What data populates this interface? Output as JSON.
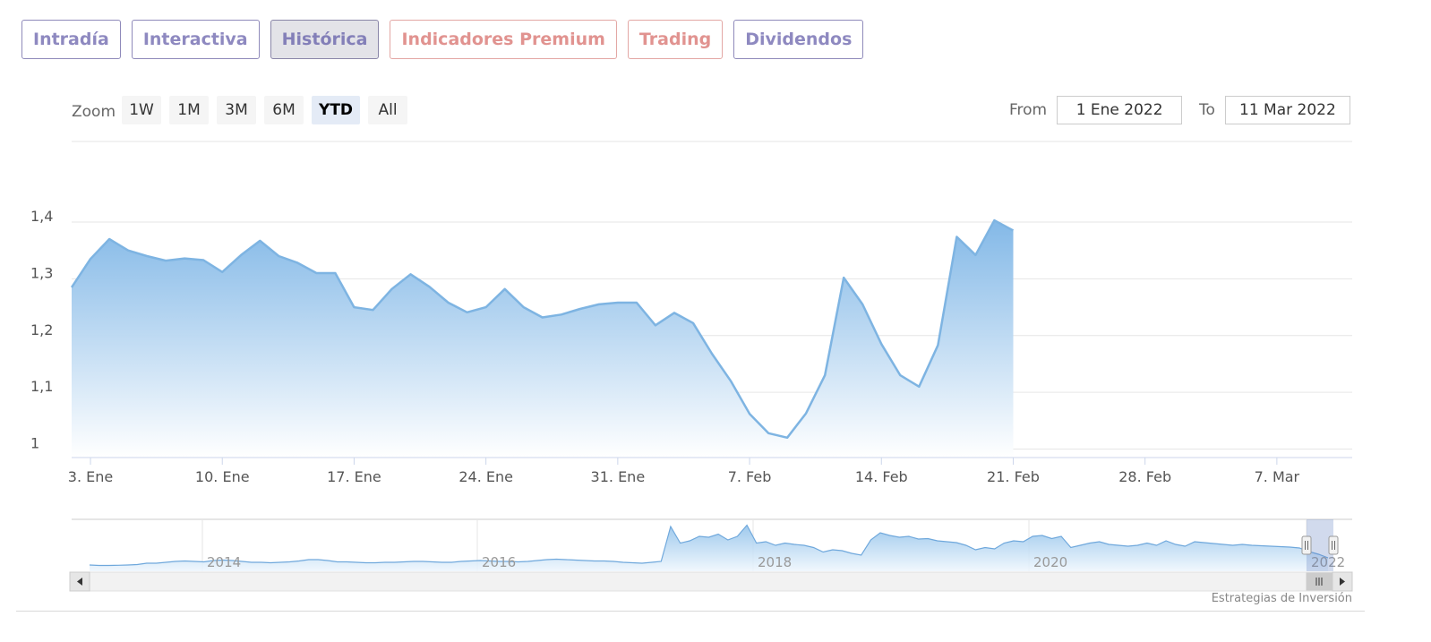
{
  "tabs": [
    {
      "label": "Intradía",
      "style": "default"
    },
    {
      "label": "Interactiva",
      "style": "default"
    },
    {
      "label": "Histórica",
      "style": "active"
    },
    {
      "label": "Indicadores Premium",
      "style": "premium"
    },
    {
      "label": "Trading",
      "style": "premium"
    },
    {
      "label": "Dividendos",
      "style": "default"
    }
  ],
  "range_selector": {
    "zoom_label": "Zoom",
    "buttons": [
      "1W",
      "1M",
      "3M",
      "6M",
      "YTD",
      "All"
    ],
    "selected": "YTD",
    "from_label": "From",
    "from_value": "1 Ene 2022",
    "to_label": "To",
    "to_value": "11 Mar 2022"
  },
  "colors": {
    "line": "#7eb4e2",
    "fill_top": "#7db5e6",
    "fill_bottom": "#ffffff",
    "tab_text": "#8e89c0",
    "tab_premium": "#e19390"
  },
  "chart_data": {
    "type": "area",
    "y_ticks": [
      1,
      1.1,
      1.2,
      1.3,
      1.4
    ],
    "y_tick_labels": [
      "1",
      "1,1",
      "1,2",
      "1,3",
      "1,4"
    ],
    "ylim": [
      0.985,
      1.43
    ],
    "x_start": "2022-01-02",
    "x_end": "2022-03-11",
    "x_ticks": [
      {
        "date": "2022-01-03",
        "label": "3. Ene"
      },
      {
        "date": "2022-01-10",
        "label": "10. Ene"
      },
      {
        "date": "2022-01-17",
        "label": "17. Ene"
      },
      {
        "date": "2022-01-24",
        "label": "24. Ene"
      },
      {
        "date": "2022-01-31",
        "label": "31. Ene"
      },
      {
        "date": "2022-02-07",
        "label": "7. Feb"
      },
      {
        "date": "2022-02-14",
        "label": "14. Feb"
      },
      {
        "date": "2022-02-21",
        "label": "21. Feb"
      },
      {
        "date": "2022-02-28",
        "label": "28. Feb"
      },
      {
        "date": "2022-03-07",
        "label": "7. Mar"
      }
    ],
    "points": [
      [
        "2022-01-02",
        1.285
      ],
      [
        "2022-01-03",
        1.335
      ],
      [
        "2022-01-04",
        1.37
      ],
      [
        "2022-01-05",
        1.35
      ],
      [
        "2022-01-06",
        1.34
      ],
      [
        "2022-01-07",
        1.332
      ],
      [
        "2022-01-08",
        1.336
      ],
      [
        "2022-01-09",
        1.333
      ],
      [
        "2022-01-10",
        1.312
      ],
      [
        "2022-01-11",
        1.342
      ],
      [
        "2022-01-12",
        1.367
      ],
      [
        "2022-01-13",
        1.34
      ],
      [
        "2022-01-14",
        1.328
      ],
      [
        "2022-01-15",
        1.31
      ],
      [
        "2022-01-16",
        1.31
      ],
      [
        "2022-01-17",
        1.25
      ],
      [
        "2022-01-18",
        1.245
      ],
      [
        "2022-01-19",
        1.282
      ],
      [
        "2022-01-20",
        1.308
      ],
      [
        "2022-01-21",
        1.286
      ],
      [
        "2022-01-22",
        1.258
      ],
      [
        "2022-01-23",
        1.241
      ],
      [
        "2022-01-24",
        1.25
      ],
      [
        "2022-01-25",
        1.282
      ],
      [
        "2022-01-26",
        1.25
      ],
      [
        "2022-01-27",
        1.232
      ],
      [
        "2022-01-28",
        1.237
      ],
      [
        "2022-01-29",
        1.247
      ],
      [
        "2022-01-30",
        1.255
      ],
      [
        "2022-01-31",
        1.258
      ],
      [
        "2022-02-01",
        1.258
      ],
      [
        "2022-02-02",
        1.218
      ],
      [
        "2022-02-03",
        1.24
      ],
      [
        "2022-02-04",
        1.222
      ],
      [
        "2022-02-05",
        1.168
      ],
      [
        "2022-02-06",
        1.12
      ],
      [
        "2022-02-07",
        1.062
      ],
      [
        "2022-02-08",
        1.028
      ],
      [
        "2022-02-09",
        1.02
      ],
      [
        "2022-02-10",
        1.063
      ],
      [
        "2022-02-11",
        1.13
      ],
      [
        "2022-02-12",
        1.302
      ],
      [
        "2022-02-13",
        1.255
      ],
      [
        "2022-02-14",
        1.185
      ],
      [
        "2022-02-15",
        1.13
      ],
      [
        "2022-02-16",
        1.11
      ],
      [
        "2022-02-17",
        1.183
      ],
      [
        "2022-02-18",
        1.374
      ],
      [
        "2022-02-19",
        1.342
      ],
      [
        "2022-02-20",
        1.403
      ],
      [
        "2022-02-21",
        1.385
      ]
    ]
  },
  "navigator": {
    "year_labels": [
      "2014",
      "2016",
      "2018",
      "2020",
      "2022"
    ],
    "series": [
      0.06,
      0.05,
      0.05,
      0.055,
      0.06,
      0.07,
      0.1,
      0.1,
      0.12,
      0.14,
      0.15,
      0.14,
      0.13,
      0.16,
      0.17,
      0.16,
      0.14,
      0.12,
      0.12,
      0.11,
      0.12,
      0.13,
      0.15,
      0.18,
      0.18,
      0.16,
      0.13,
      0.13,
      0.12,
      0.11,
      0.11,
      0.12,
      0.12,
      0.13,
      0.14,
      0.14,
      0.13,
      0.12,
      0.12,
      0.14,
      0.15,
      0.16,
      0.15,
      0.14,
      0.14,
      0.13,
      0.14,
      0.16,
      0.18,
      0.19,
      0.18,
      0.17,
      0.16,
      0.15,
      0.15,
      0.14,
      0.12,
      0.11,
      0.1,
      0.12,
      0.14,
      0.92,
      0.55,
      0.6,
      0.7,
      0.68,
      0.75,
      0.62,
      0.7,
      0.95,
      0.55,
      0.58,
      0.5,
      0.55,
      0.52,
      0.5,
      0.45,
      0.35,
      0.4,
      0.38,
      0.32,
      0.28,
      0.62,
      0.78,
      0.72,
      0.68,
      0.7,
      0.64,
      0.65,
      0.6,
      0.58,
      0.56,
      0.5,
      0.4,
      0.45,
      0.42,
      0.55,
      0.6,
      0.58,
      0.7,
      0.72,
      0.65,
      0.7,
      0.45,
      0.5,
      0.55,
      0.58,
      0.52,
      0.5,
      0.48,
      0.5,
      0.55,
      0.5,
      0.6,
      0.52,
      0.48,
      0.58,
      0.56,
      0.54,
      0.52,
      0.5,
      0.52,
      0.5,
      0.49,
      0.48,
      0.47,
      0.46,
      0.44,
      0.36,
      0.3,
      0.22
    ]
  },
  "credit": "Estrategias de Inversión"
}
